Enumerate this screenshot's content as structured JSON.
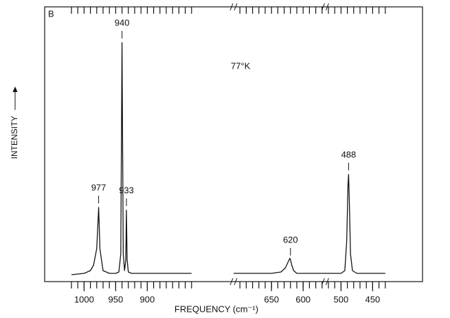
{
  "chart_data": {
    "type": "line",
    "panel_label": "B",
    "annotation": "77°K",
    "ylabel": "INTENSITY",
    "xlabel": "FREQUENCY (cm⁻¹)",
    "ylim": [
      0,
      100
    ],
    "color": "#111111",
    "x_segments": [
      {
        "xlim": [
          1030,
          820
        ],
        "xticks": [
          1000,
          950,
          900
        ],
        "minor_xticks": [
          1020,
          1010,
          1000,
          990,
          980,
          970,
          960,
          950,
          940,
          930,
          920,
          910,
          900,
          890,
          880,
          870,
          860,
          850,
          840,
          830
        ]
      },
      {
        "xlim": [
          710,
          565
        ],
        "xticks": [
          650,
          600
        ],
        "minor_xticks": [
          700,
          690,
          680,
          670,
          660,
          650,
          640,
          630,
          620,
          610,
          600,
          590,
          580,
          570
        ]
      },
      {
        "xlim": [
          525,
          420
        ],
        "xticks": [
          500,
          450
        ],
        "minor_xticks": [
          520,
          510,
          500,
          490,
          480,
          470,
          460,
          450,
          440,
          430
        ]
      }
    ],
    "series": [
      {
        "name": "spectrum",
        "x": [
          1020,
          1000,
          990,
          985,
          980,
          977,
          975,
          970,
          960,
          950,
          945,
          942,
          940,
          938,
          936,
          934,
          933,
          932,
          930,
          925,
          910,
          880,
          850,
          830,
          710,
          680,
          650,
          635,
          628,
          624,
          621,
          620,
          618,
          615,
          610,
          600,
          580,
          565,
          525,
          510,
          500,
          494,
          491,
          489,
          488,
          487,
          485,
          482,
          475,
          460,
          440,
          430
        ],
        "values": [
          2.5,
          3,
          4,
          6,
          12,
          27,
          12,
          4,
          3,
          3,
          3.5,
          10,
          87,
          10,
          4,
          8,
          26,
          8,
          3.5,
          3,
          3,
          3,
          3,
          3,
          3,
          3,
          3,
          3.5,
          5,
          7,
          8.5,
          8,
          6,
          4,
          3,
          3,
          3,
          3,
          3,
          3,
          3,
          4,
          15,
          35,
          39,
          30,
          10,
          4,
          3,
          3,
          3,
          3
        ]
      }
    ],
    "peak_labels": [
      {
        "text": "977",
        "x": 977
      },
      {
        "text": "940",
        "x": 940
      },
      {
        "text": "933",
        "x": 933
      },
      {
        "text": "620",
        "x": 620
      },
      {
        "text": "488",
        "x": 488
      }
    ]
  }
}
